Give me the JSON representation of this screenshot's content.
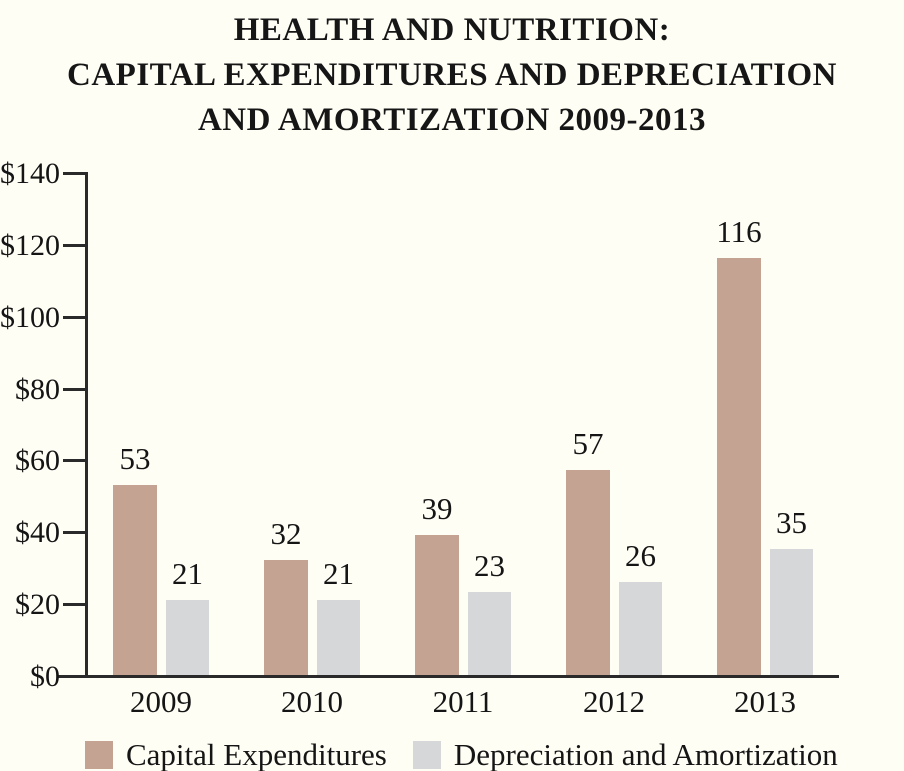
{
  "title": {
    "line1": "HEALTH AND NUTRITION:",
    "line2": "CAPITAL EXPENDITURES AND DEPRECIATION",
    "line3": "AND AMORTIZATION 2009-2013"
  },
  "chart_data": {
    "type": "bar",
    "title": "HEALTH AND NUTRITION: CAPITAL EXPENDITURES AND DEPRECIATION AND AMORTIZATION 2009-2013",
    "categories": [
      "2009",
      "2010",
      "2011",
      "2012",
      "2013"
    ],
    "series": [
      {
        "name": "Capital Expenditures",
        "color": "#c4a392",
        "values": [
          53,
          32,
          39,
          57,
          116
        ]
      },
      {
        "name": "Depreciation and Amortization",
        "color": "#d6d7d9",
        "values": [
          21,
          21,
          23,
          26,
          35
        ]
      }
    ],
    "y_tick_labels": [
      "$140",
      "$120",
      "$100",
      "$80",
      "$60",
      "$40",
      "$20",
      "$0"
    ],
    "y_tick_values": [
      140,
      120,
      100,
      80,
      60,
      40,
      20,
      0
    ],
    "ylim": [
      0,
      140
    ],
    "xlabel": "",
    "ylabel": "",
    "grid": false,
    "data_labels": true,
    "legend_position": "bottom"
  },
  "colors": {
    "background": "#fffef5",
    "axis": "#2a2a2a",
    "text": "#151515",
    "capital_expenditures": "#c4a392",
    "depreciation_amortization": "#d6d7d9"
  }
}
